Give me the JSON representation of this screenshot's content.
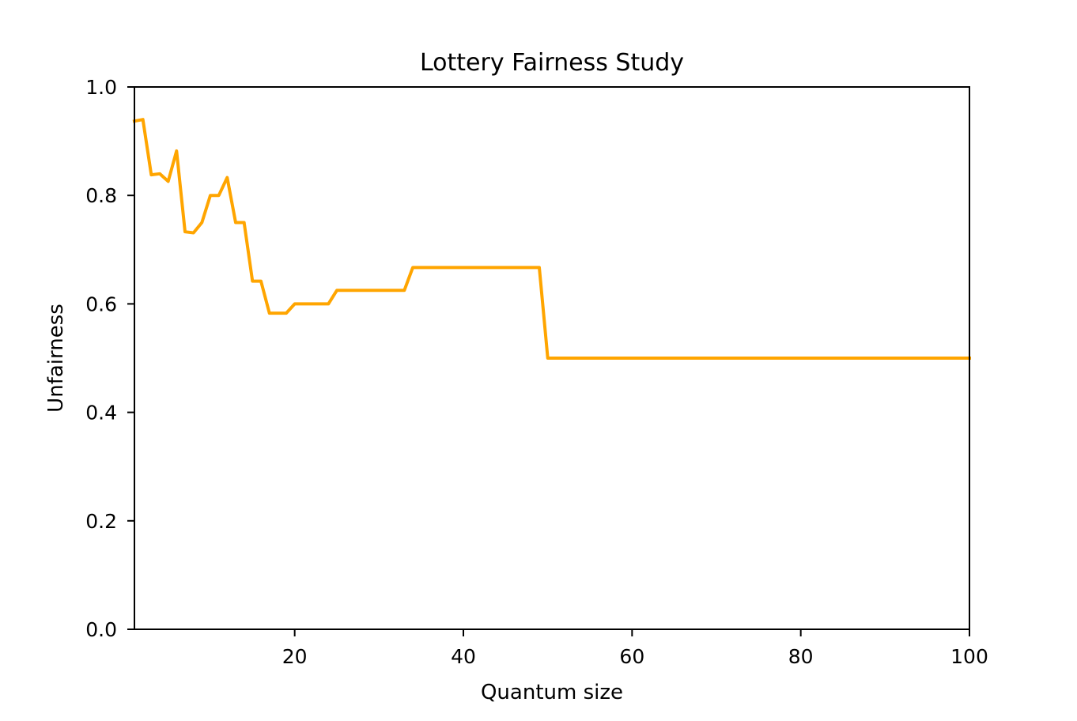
{
  "chart_data": {
    "type": "line",
    "title": "Lottery Fairness Study",
    "xlabel": "Quantum size",
    "ylabel": "Unfairness",
    "xlim": [
      1,
      100
    ],
    "ylim": [
      0.0,
      1.0
    ],
    "x_ticks": [
      20,
      40,
      60,
      80,
      100
    ],
    "x_tick_labels": [
      "20",
      "40",
      "60",
      "80",
      "100"
    ],
    "y_ticks": [
      0.0,
      0.2,
      0.4,
      0.6,
      0.8,
      1.0
    ],
    "y_tick_labels": [
      "0.0",
      "0.2",
      "0.4",
      "0.6",
      "0.8",
      "1.0"
    ],
    "grid": false,
    "legend": "none",
    "colors": {
      "line": "#ffa500",
      "axes": "#000000",
      "background": "#ffffff"
    },
    "series": [
      {
        "x": [
          1,
          2,
          3,
          4,
          5,
          6,
          7,
          8,
          9,
          10,
          11,
          12,
          13,
          14,
          15,
          16,
          17,
          18,
          19,
          20,
          21,
          22,
          23,
          24,
          25,
          26,
          27,
          28,
          29,
          30,
          31,
          32,
          33,
          34,
          35,
          36,
          37,
          38,
          39,
          40,
          41,
          42,
          43,
          44,
          45,
          46,
          47,
          48,
          49,
          50,
          51,
          52,
          53,
          54,
          55,
          56,
          57,
          58,
          59,
          60,
          61,
          62,
          63,
          64,
          65,
          66,
          67,
          68,
          69,
          70,
          71,
          72,
          73,
          74,
          75,
          76,
          77,
          78,
          79,
          80,
          81,
          82,
          83,
          84,
          85,
          86,
          87,
          88,
          89,
          90,
          91,
          92,
          93,
          94,
          95,
          96,
          97,
          98,
          99,
          100
        ],
        "values": [
          0.937,
          0.94,
          0.838,
          0.84,
          0.826,
          0.882,
          0.733,
          0.731,
          0.75,
          0.8,
          0.8,
          0.833,
          0.75,
          0.75,
          0.642,
          0.642,
          0.583,
          0.583,
          0.583,
          0.6,
          0.6,
          0.6,
          0.6,
          0.6,
          0.625,
          0.625,
          0.625,
          0.625,
          0.625,
          0.625,
          0.625,
          0.625,
          0.625,
          0.667,
          0.667,
          0.667,
          0.667,
          0.667,
          0.667,
          0.667,
          0.667,
          0.667,
          0.667,
          0.667,
          0.667,
          0.667,
          0.667,
          0.667,
          0.667,
          0.5,
          0.5,
          0.5,
          0.5,
          0.5,
          0.5,
          0.5,
          0.5,
          0.5,
          0.5,
          0.5,
          0.5,
          0.5,
          0.5,
          0.5,
          0.5,
          0.5,
          0.5,
          0.5,
          0.5,
          0.5,
          0.5,
          0.5,
          0.5,
          0.5,
          0.5,
          0.5,
          0.5,
          0.5,
          0.5,
          0.5,
          0.5,
          0.5,
          0.5,
          0.5,
          0.5,
          0.5,
          0.5,
          0.5,
          0.5,
          0.5,
          0.5,
          0.5,
          0.5,
          0.5,
          0.5,
          0.5,
          0.5,
          0.5,
          0.5,
          0.5
        ]
      }
    ]
  }
}
